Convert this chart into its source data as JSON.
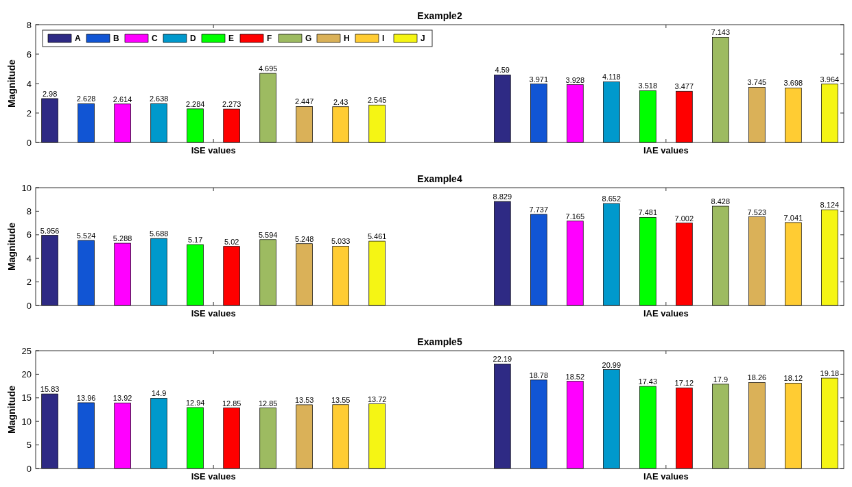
{
  "chart_data": [
    {
      "type": "bar",
      "title": "Example2",
      "ylabel": "Magnitude",
      "categories": [
        "ISE values",
        "IAE values"
      ],
      "ylim": [
        0,
        8
      ],
      "yticks": [
        0,
        2,
        4,
        6,
        8
      ],
      "data_labels": true,
      "legend": "top left",
      "grid": false,
      "series": [
        {
          "name": "A",
          "color": "#2e2a84",
          "values": [
            2.98,
            4.59
          ]
        },
        {
          "name": "B",
          "color": "#1155d4",
          "values": [
            2.628,
            3.971
          ]
        },
        {
          "name": "C",
          "color": "#ff00ff",
          "values": [
            2.614,
            3.928
          ]
        },
        {
          "name": "D",
          "color": "#0099cc",
          "values": [
            2.638,
            4.118
          ]
        },
        {
          "name": "E",
          "color": "#00ff00",
          "values": [
            2.284,
            3.518
          ]
        },
        {
          "name": "F",
          "color": "#ff0000",
          "values": [
            2.273,
            3.477
          ]
        },
        {
          "name": "G",
          "color": "#9dbb61",
          "values": [
            4.695,
            7.143
          ]
        },
        {
          "name": "H",
          "color": "#dab158",
          "values": [
            2.447,
            3.745
          ]
        },
        {
          "name": "I",
          "color": "#ffcc33",
          "values": [
            2.43,
            3.698
          ]
        },
        {
          "name": "J",
          "color": "#f5f514",
          "values": [
            2.545,
            3.964
          ]
        }
      ]
    },
    {
      "type": "bar",
      "title": "Example4",
      "ylabel": "Magnitude",
      "categories": [
        "ISE values",
        "IAE values"
      ],
      "ylim": [
        0,
        10
      ],
      "yticks": [
        0,
        2,
        4,
        6,
        8,
        10
      ],
      "data_labels": true,
      "grid": false,
      "series": [
        {
          "color": "#2e2a84",
          "values": [
            5.956,
            8.829
          ]
        },
        {
          "color": "#1155d4",
          "values": [
            5.524,
            7.737
          ]
        },
        {
          "color": "#ff00ff",
          "values": [
            5.288,
            7.165
          ]
        },
        {
          "color": "#0099cc",
          "values": [
            5.688,
            8.652
          ]
        },
        {
          "color": "#00ff00",
          "values": [
            5.17,
            7.481
          ]
        },
        {
          "color": "#ff0000",
          "values": [
            5.02,
            7.002
          ]
        },
        {
          "color": "#9dbb61",
          "values": [
            5.594,
            8.428
          ]
        },
        {
          "color": "#dab158",
          "values": [
            5.248,
            7.523
          ]
        },
        {
          "color": "#ffcc33",
          "values": [
            5.033,
            7.041
          ]
        },
        {
          "color": "#f5f514",
          "values": [
            5.461,
            8.124
          ]
        }
      ]
    },
    {
      "type": "bar",
      "title": "Example5",
      "ylabel": "Magnitude",
      "categories": [
        "ISE values",
        "IAE values"
      ],
      "ylim": [
        0,
        25
      ],
      "yticks": [
        0,
        5,
        10,
        15,
        20,
        25
      ],
      "data_labels": true,
      "grid": false,
      "series": [
        {
          "color": "#2e2a84",
          "values": [
            15.83,
            22.19
          ]
        },
        {
          "color": "#1155d4",
          "values": [
            13.96,
            18.78
          ]
        },
        {
          "color": "#ff00ff",
          "values": [
            13.92,
            18.52
          ]
        },
        {
          "color": "#0099cc",
          "values": [
            14.9,
            20.99
          ]
        },
        {
          "color": "#00ff00",
          "values": [
            12.94,
            17.43
          ]
        },
        {
          "color": "#ff0000",
          "values": [
            12.85,
            17.12
          ]
        },
        {
          "color": "#9dbb61",
          "values": [
            12.85,
            17.9
          ]
        },
        {
          "color": "#dab158",
          "values": [
            13.53,
            18.26
          ]
        },
        {
          "color": "#ffcc33",
          "values": [
            13.55,
            18.12
          ]
        },
        {
          "color": "#f5f514",
          "values": [
            13.72,
            19.18
          ]
        }
      ]
    }
  ]
}
